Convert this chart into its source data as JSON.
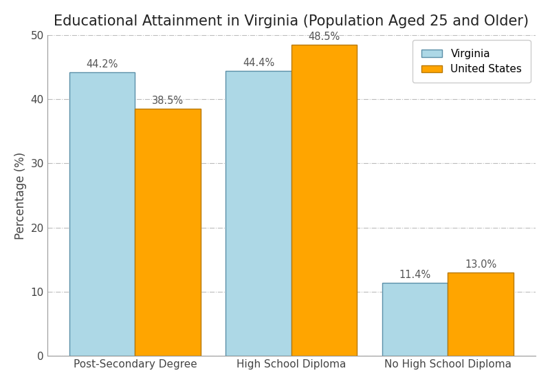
{
  "title": "Educational Attainment in Virginia (Population Aged 25 and Older)",
  "categories": [
    "Post-Secondary Degree",
    "High School Diploma",
    "No High School Diploma"
  ],
  "virginia_values": [
    44.2,
    44.4,
    11.4
  ],
  "us_values": [
    38.5,
    48.5,
    13.0
  ],
  "virginia_color": "#add8e6",
  "us_color": "#ffa500",
  "virginia_label": "Virginia",
  "us_label": "United States",
  "ylabel": "Percentage (%)",
  "ylim": [
    0,
    50
  ],
  "yticks": [
    0,
    10,
    20,
    30,
    40,
    50
  ],
  "bar_width": 0.42,
  "bar_edge_color": "#5b8fa8",
  "us_edge_color": "#b87800",
  "background_color": "#ffffff",
  "title_fontsize": 15,
  "axis_label_fontsize": 12,
  "tick_fontsize": 11,
  "annotation_fontsize": 10.5,
  "grid_color": "#bbbbbb",
  "grid_style": "-.",
  "legend_fontsize": 11
}
